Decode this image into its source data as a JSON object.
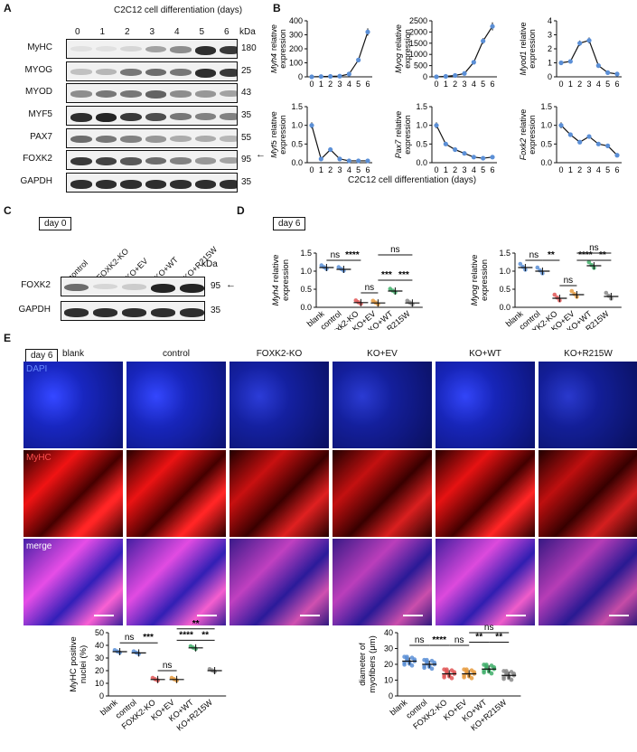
{
  "panels": {
    "A": "A",
    "B": "B",
    "C": "C",
    "D": "D",
    "E": "E"
  },
  "panelA": {
    "title": "C2C12 cell differentiation (days)",
    "days": [
      "0",
      "1",
      "2",
      "3",
      "4",
      "5",
      "6"
    ],
    "kda": "kDa",
    "rows": [
      {
        "name": "MyHC",
        "kda": "180"
      },
      {
        "name": "MYOG",
        "kda": "25"
      },
      {
        "name": "MYOD",
        "kda": "43"
      },
      {
        "name": "MYF5",
        "kda": "35"
      },
      {
        "name": "PAX7",
        "kda": "55"
      },
      {
        "name": "FOXK2",
        "kda": "95"
      },
      {
        "name": "GAPDH",
        "kda": "35"
      }
    ],
    "levels": [
      [
        0.05,
        0.05,
        0.1,
        0.35,
        0.45,
        0.9,
        0.85
      ],
      [
        0.2,
        0.25,
        0.55,
        0.6,
        0.55,
        0.9,
        0.85
      ],
      [
        0.45,
        0.55,
        0.55,
        0.65,
        0.45,
        0.4,
        0.35
      ],
      [
        0.9,
        0.95,
        0.85,
        0.75,
        0.55,
        0.5,
        0.5
      ],
      [
        0.6,
        0.55,
        0.5,
        0.4,
        0.3,
        0.3,
        0.25
      ],
      [
        0.85,
        0.8,
        0.7,
        0.6,
        0.5,
        0.4,
        0.35
      ],
      [
        0.9,
        0.9,
        0.9,
        0.9,
        0.9,
        0.9,
        0.9
      ]
    ]
  },
  "panelB": {
    "xlabel": "C2C12 cell differentiation (days)",
    "relative_expression": "relative expression",
    "genes": [
      {
        "gene": "Myh4",
        "ticks": [
          "0",
          "100",
          "200",
          "300",
          "400"
        ],
        "ymax": 400
      },
      {
        "gene": "Myog",
        "ticks": [
          "0",
          "500",
          "1000",
          "1500",
          "2000",
          "2500"
        ],
        "ymax": 2500
      },
      {
        "gene": "Myod1",
        "ticks": [
          "0",
          "1",
          "2",
          "3",
          "4"
        ],
        "ymax": 4
      },
      {
        "gene": "Myf5",
        "ticks": [
          "0.0",
          "0.5",
          "1.0",
          "1.5"
        ],
        "ymax": 1.5
      },
      {
        "gene": "Pax7",
        "ticks": [
          "0.0",
          "0.5",
          "1.0",
          "1.5"
        ],
        "ymax": 1.5
      },
      {
        "gene": "Foxk2",
        "ticks": [
          "0.0",
          "0.5",
          "1.0",
          "1.5"
        ],
        "ymax": 1.5
      }
    ]
  },
  "panelC": {
    "tag": "day 0",
    "lanes": [
      "control",
      "FOXK2-KO",
      "KO+EV",
      "KO+WT",
      "KO+R215W"
    ],
    "kda": "kDa",
    "rows": [
      {
        "name": "FOXK2",
        "kda": "95"
      },
      {
        "name": "GAPDH",
        "kda": "35"
      }
    ]
  },
  "panelD": {
    "tag": "day 6",
    "ylabel_suffix": "relative expression",
    "ticks": [
      "0.0",
      "0.5",
      "1.0",
      "1.5"
    ],
    "myh4": {
      "gene": "Myh4",
      "groups": [
        "blank",
        "control",
        "Foxk2-KO",
        "KO+EV",
        "KO+WT",
        "KO+R215W"
      ],
      "sig": [
        "ns",
        "****",
        "ns",
        "***",
        "***",
        "ns"
      ]
    },
    "myog": {
      "gene": "Myog",
      "groups": [
        "blank",
        "control",
        "FOXK2-KO",
        "KO+EV",
        "KO+WT",
        "KO+R215W"
      ],
      "sig": [
        "ns",
        "**",
        "ns",
        "****",
        "**",
        "ns"
      ]
    }
  },
  "panelE": {
    "tag": "day 6",
    "columns": [
      "blank",
      "control",
      "FOXK2-KO",
      "KO+EV",
      "KO+WT",
      "KO+R215W"
    ],
    "channels": [
      "DAPI",
      "MyHC",
      "merge"
    ],
    "myhc_plot": {
      "ylabel": "MyHC positive nuclei (%)",
      "ticks": [
        "0",
        "10",
        "20",
        "30",
        "40",
        "50"
      ],
      "groups": [
        "blank",
        "control",
        "FOXK2-KO",
        "KO+EV",
        "KO+WT",
        "KO+R215W"
      ],
      "sig": [
        "ns",
        "***",
        "ns",
        "****",
        "**",
        "**"
      ]
    },
    "diam_plot": {
      "ylabel": "diameter of myofibers (μm)",
      "ticks": [
        "0",
        "10",
        "20",
        "30",
        "40"
      ],
      "groups": [
        "blank",
        "control",
        "FOXK2-KO",
        "KO+EV",
        "KO+WT",
        "KO+R215W"
      ],
      "sig": [
        "ns",
        "****",
        "ns",
        "**",
        "**",
        "ns"
      ]
    }
  },
  "chart_data": [
    {
      "type": "line",
      "title": "",
      "xlabel": "C2C12 cell differentiation (days)",
      "ylabel": "Myh4 relative expression",
      "x": [
        0,
        1,
        2,
        3,
        4,
        5,
        6
      ],
      "values": [
        0,
        2,
        3,
        5,
        20,
        120,
        320
      ],
      "ylim": [
        0,
        400
      ]
    },
    {
      "type": "line",
      "title": "",
      "xlabel": "C2C12 cell differentiation (days)",
      "ylabel": "Myog relative expression",
      "x": [
        0,
        1,
        2,
        3,
        4,
        5,
        6
      ],
      "values": [
        0,
        20,
        60,
        150,
        650,
        1600,
        2250
      ],
      "ylim": [
        0,
        2500
      ]
    },
    {
      "type": "line",
      "title": "",
      "xlabel": "C2C12 cell differentiation (days)",
      "ylabel": "Myod1 relative expression",
      "x": [
        0,
        1,
        2,
        3,
        4,
        5,
        6
      ],
      "values": [
        1.0,
        1.1,
        2.4,
        2.6,
        0.8,
        0.3,
        0.2
      ],
      "ylim": [
        0,
        4
      ]
    },
    {
      "type": "line",
      "title": "",
      "xlabel": "C2C12 cell differentiation (days)",
      "ylabel": "Myf5 relative expression",
      "x": [
        0,
        1,
        2,
        3,
        4,
        5,
        6
      ],
      "values": [
        1.0,
        0.1,
        0.35,
        0.1,
        0.05,
        0.05,
        0.05
      ],
      "ylim": [
        0,
        1.5
      ]
    },
    {
      "type": "line",
      "title": "",
      "xlabel": "C2C12 cell differentiation (days)",
      "ylabel": "Pax7 relative expression",
      "x": [
        0,
        1,
        2,
        3,
        4,
        5,
        6
      ],
      "values": [
        1.0,
        0.5,
        0.35,
        0.25,
        0.15,
        0.12,
        0.15
      ],
      "ylim": [
        0,
        1.5
      ]
    },
    {
      "type": "line",
      "title": "",
      "xlabel": "C2C12 cell differentiation (days)",
      "ylabel": "Foxk2 relative expression",
      "x": [
        0,
        1,
        2,
        3,
        4,
        5,
        6
      ],
      "values": [
        1.0,
        0.75,
        0.55,
        0.7,
        0.5,
        0.45,
        0.2
      ],
      "ylim": [
        0,
        1.5
      ]
    },
    {
      "type": "scatter",
      "title": "",
      "ylabel": "Myh4 relative expression",
      "categories": [
        "blank",
        "control",
        "Foxk2-KO",
        "KO+EV",
        "KO+WT",
        "KO+R215W"
      ],
      "values": [
        1.1,
        1.05,
        0.13,
        0.12,
        0.45,
        0.12
      ],
      "ylim": [
        0,
        1.5
      ]
    },
    {
      "type": "scatter",
      "title": "",
      "ylabel": "Myog relative expression",
      "categories": [
        "blank",
        "control",
        "FOXK2-KO",
        "KO+EV",
        "KO+WT",
        "KO+R215W"
      ],
      "values": [
        1.1,
        1.0,
        0.25,
        0.35,
        1.15,
        0.3
      ],
      "ylim": [
        0,
        1.5
      ]
    },
    {
      "type": "scatter",
      "title": "",
      "ylabel": "MyHC positive nuclei (%)",
      "categories": [
        "blank",
        "control",
        "FOXK2-KO",
        "KO+EV",
        "KO+WT",
        "KO+R215W"
      ],
      "values": [
        35,
        34,
        13,
        13,
        38,
        20
      ],
      "ylim": [
        0,
        50
      ]
    },
    {
      "type": "scatter",
      "title": "",
      "ylabel": "diameter of myofibers (μm)",
      "categories": [
        "blank",
        "control",
        "FOXK2-KO",
        "KO+EV",
        "KO+WT",
        "KO+R215W"
      ],
      "values": [
        22,
        20,
        14,
        14,
        17,
        13
      ],
      "ylim": [
        0,
        40
      ]
    }
  ]
}
